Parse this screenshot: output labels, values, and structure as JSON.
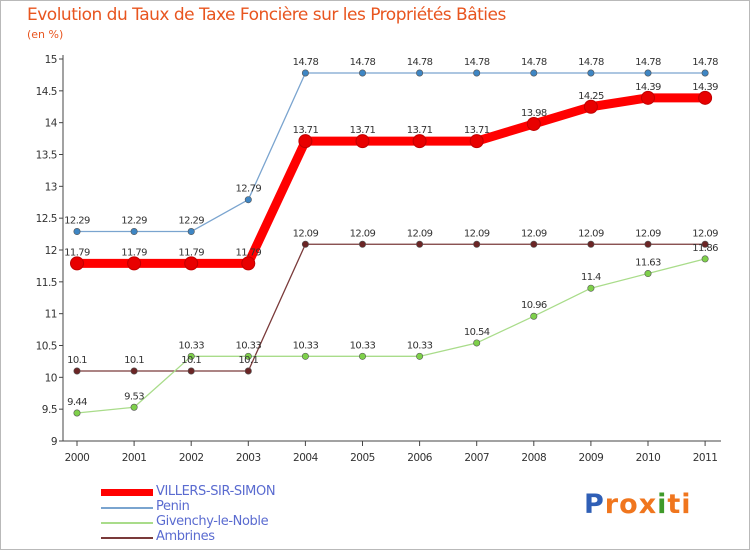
{
  "header": {
    "title": "Evolution du Taux de Taxe Foncière sur les Propriétés Bâties",
    "unit": "(en %)"
  },
  "logo": {
    "text": "Proxiti",
    "letters": [
      "P",
      "r",
      "o",
      "x",
      "i",
      "t",
      "i"
    ],
    "colors": [
      "#2f5fb6",
      "#f0761e",
      "#f0761e",
      "#f0761e",
      "#3f9a2a",
      "#f0761e",
      "#f0761e"
    ]
  },
  "chart_data": {
    "type": "line",
    "title": "Evolution du Taux de Taxe Foncière sur les Propriétés Bâties",
    "ylabel": "(en %)",
    "xlabel": "",
    "ylim": [
      9,
      15
    ],
    "yticks": [
      "9",
      "9.5",
      "10",
      "10.5",
      "11",
      "11.5",
      "12",
      "12.5",
      "13",
      "13.5",
      "14",
      "14.5",
      "15"
    ],
    "categories": [
      "2000",
      "2001",
      "2002",
      "2003",
      "2004",
      "2005",
      "2006",
      "2007",
      "2008",
      "2009",
      "2010",
      "2011"
    ],
    "grid": false,
    "series": [
      {
        "name": "VILLERS-SIR-SIMON",
        "color": "#ff0000",
        "marker": "#e80000",
        "width": "thick",
        "values": [
          11.79,
          11.79,
          11.79,
          11.79,
          13.71,
          13.71,
          13.71,
          13.71,
          13.98,
          14.25,
          14.39,
          14.39
        ],
        "labels": [
          "11.79",
          "11.79",
          "11.79",
          "11.79",
          "13.71",
          "13.71",
          "13.71",
          "13.71",
          "13.98",
          "14.25",
          "14.39",
          "14.39"
        ]
      },
      {
        "name": "Penin",
        "color": "#7aa4cf",
        "marker": "#3e86c4",
        "width": "thin",
        "values": [
          12.29,
          12.29,
          12.29,
          12.79,
          14.78,
          14.78,
          14.78,
          14.78,
          14.78,
          14.78,
          14.78,
          14.78
        ],
        "labels": [
          "12.29",
          "12.29",
          "12.29",
          "12.79",
          "14.78",
          "14.78",
          "14.78",
          "14.78",
          "14.78",
          "14.78",
          "14.78",
          "14.78"
        ]
      },
      {
        "name": "Givenchy-le-Noble",
        "color": "#a9dc8a",
        "marker": "#7ed04a",
        "width": "thin",
        "values": [
          9.44,
          9.53,
          10.33,
          10.33,
          10.33,
          10.33,
          10.33,
          10.54,
          10.96,
          11.4,
          11.63,
          11.86
        ],
        "labels": [
          "9.44",
          "9.53",
          "10.33",
          "10.33",
          "10.33",
          "10.33",
          "10.33",
          "10.54",
          "10.96",
          "11.4",
          "11.63",
          "11.86"
        ]
      },
      {
        "name": "Ambrines",
        "color": "#7a3a3a",
        "marker": "#6b2525",
        "width": "thin",
        "values": [
          10.1,
          10.1,
          10.1,
          10.1,
          12.09,
          12.09,
          12.09,
          12.09,
          12.09,
          12.09,
          12.09,
          12.09
        ],
        "labels": [
          "10.1",
          "10.1",
          "10.1",
          "10.1",
          "12.09",
          "12.09",
          "12.09",
          "12.09",
          "12.09",
          "12.09",
          "12.09",
          "12.09"
        ]
      }
    ]
  }
}
